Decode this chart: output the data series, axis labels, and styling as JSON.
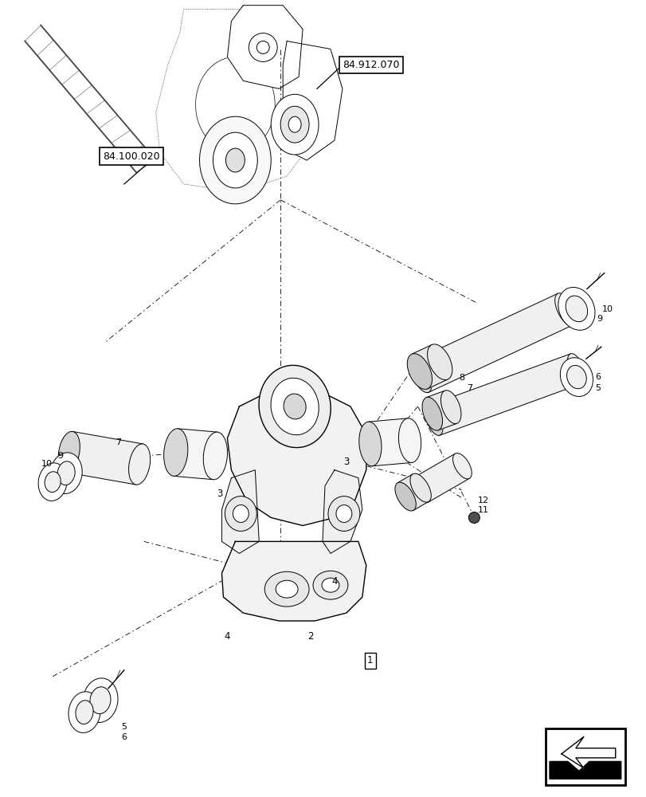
{
  "background_color": "#ffffff",
  "line_color": "#000000",
  "fig_width": 8.12,
  "fig_height": 10.0,
  "dpi": 100
}
